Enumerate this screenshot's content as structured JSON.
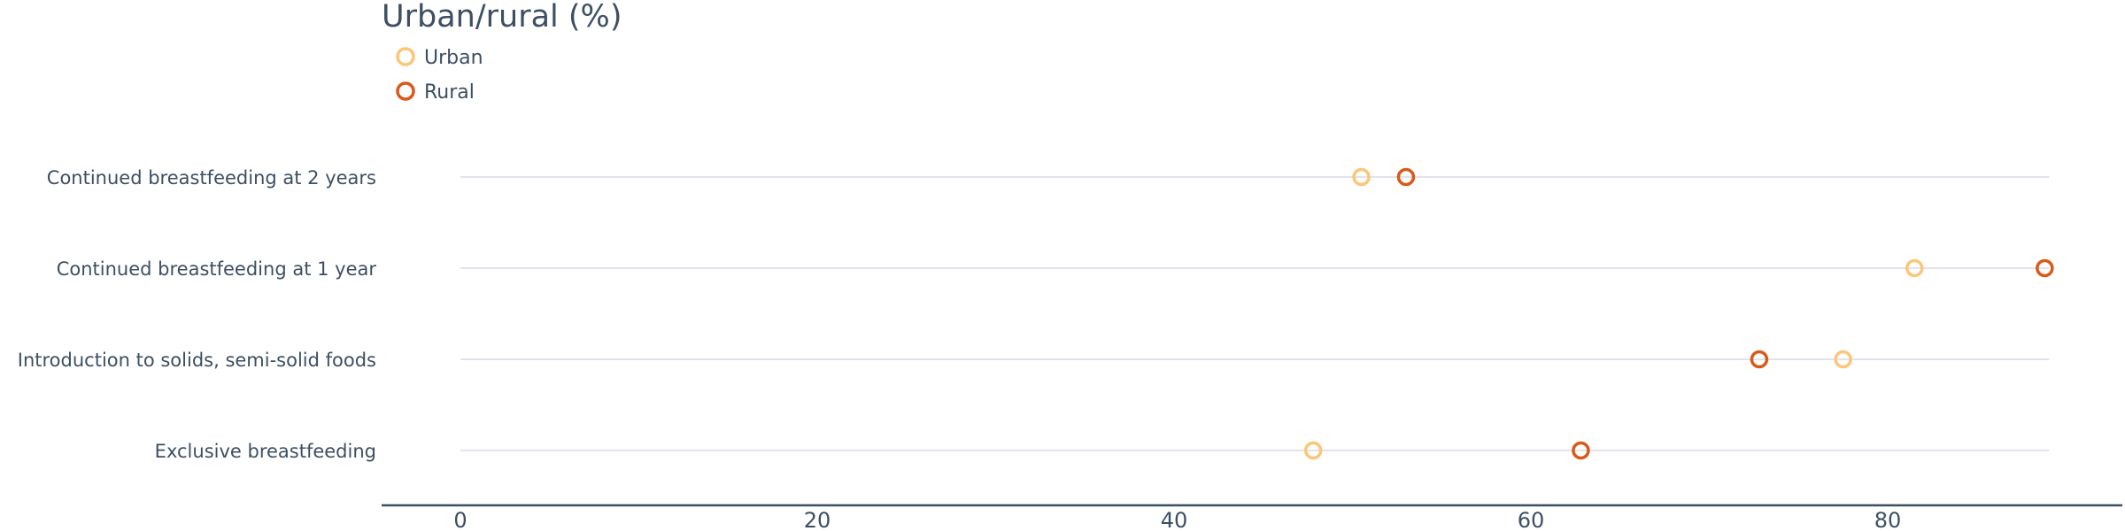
{
  "chart_data": {
    "type": "scatter",
    "title": "Urban/rural (%)",
    "xlabel": "",
    "ylabel": "",
    "xlim": [
      0,
      89
    ],
    "xticks": [
      0,
      20,
      40,
      60,
      80
    ],
    "categories": [
      "Continued breastfeeding at 2 years",
      "Continued breastfeeding at 1 year",
      "Introduction to solids, semi-solid foods",
      "Exclusive breastfeeding"
    ],
    "series": [
      {
        "name": "Urban",
        "color": "#fdc57a",
        "values": [
          50.5,
          81.5,
          77.5,
          47.8
        ]
      },
      {
        "name": "Rural",
        "color": "#d9591a",
        "values": [
          53.0,
          88.8,
          72.8,
          62.8
        ]
      }
    ],
    "legend": "top-left",
    "grid": true
  }
}
